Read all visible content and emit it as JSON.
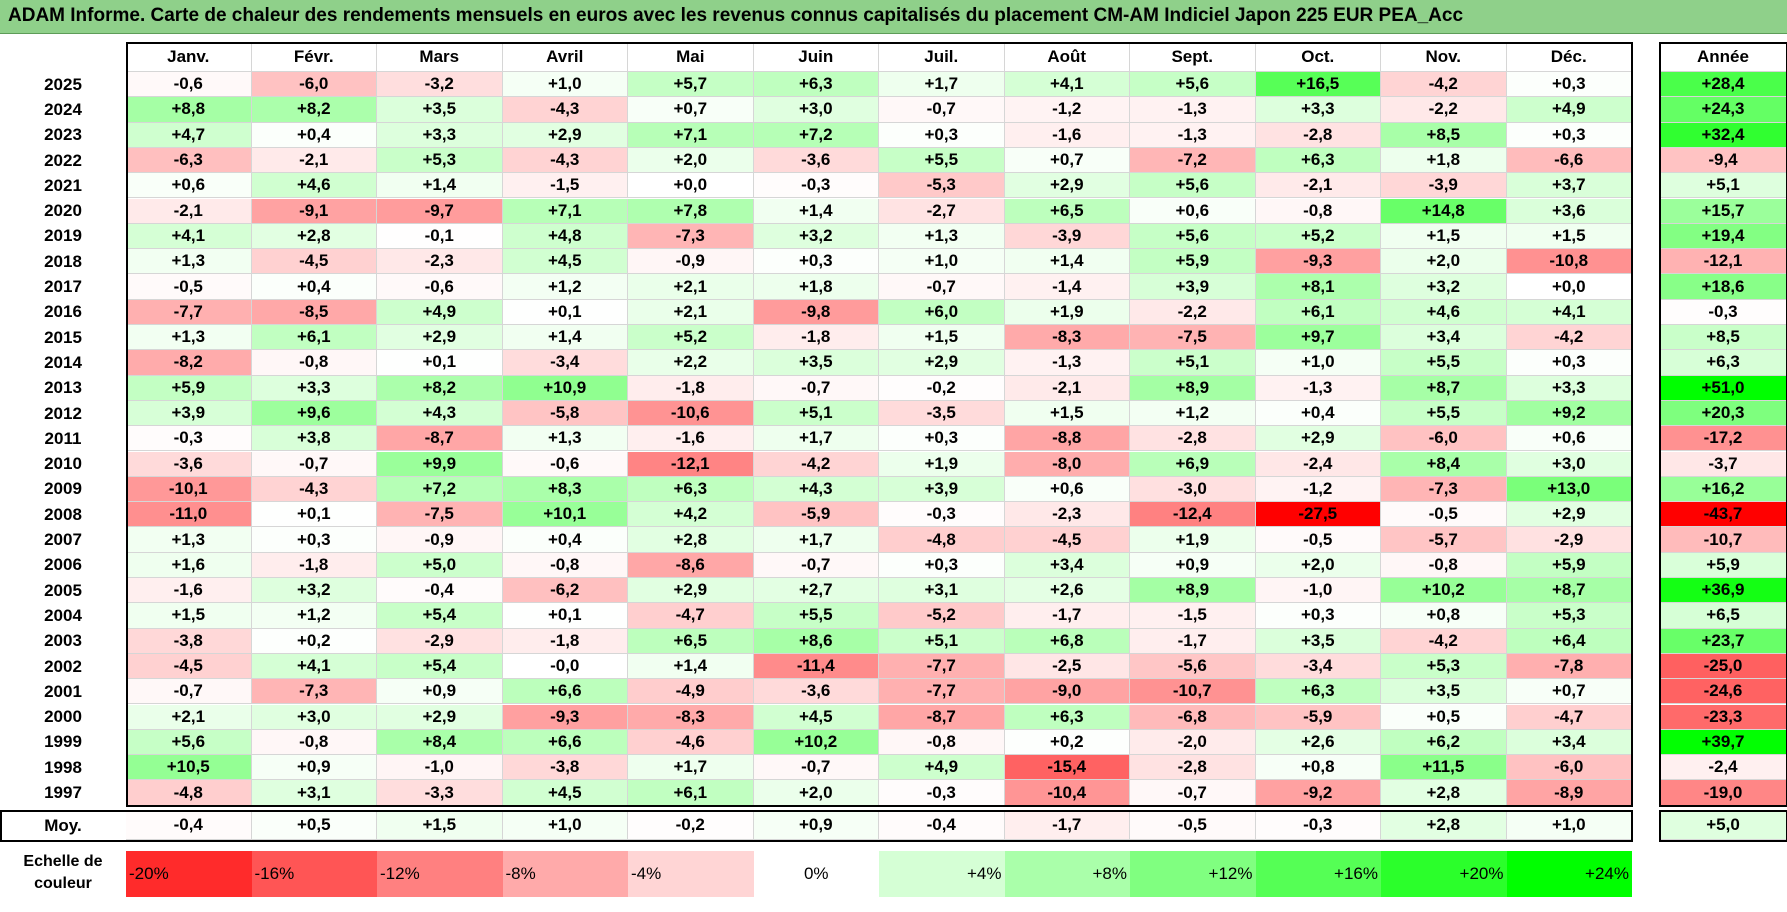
{
  "title": "ADAM Informe. Carte de chaleur des rendements mensuels en euros avec les revenus connus capitalisés du placement CM-AM Indiciel Japon 225 EUR PEA_Acc",
  "colors": {
    "neg_max": "#ff0000",
    "zero": "#ffffff",
    "pos_max": "#00ff00",
    "title_bg": "#8fd08a"
  },
  "scale_label": "Echelle de couleur",
  "chart_data": {
    "type": "heatmap",
    "title": "ADAM Informe. Carte de chaleur des rendements mensuels en euros avec les revenus connus capitalisés du placement CM-AM Indiciel Japon 225 EUR PEA_Acc",
    "months": [
      "Janv.",
      "Févr.",
      "Mars",
      "Avril",
      "Mai",
      "Juin",
      "Juil.",
      "Août",
      "Sept.",
      "Oct.",
      "Nov.",
      "Déc."
    ],
    "year_header": "Année",
    "rows": [
      {
        "year": "2025",
        "values": [
          "-0,6",
          "-6,0",
          "-3,2",
          "+1,0",
          "+5,7",
          "+6,3",
          "+1,7",
          "+4,1",
          "+5,6",
          "+16,5",
          "-4,2",
          "+0,3"
        ],
        "annual": "+28,4"
      },
      {
        "year": "2024",
        "values": [
          "+8,8",
          "+8,2",
          "+3,5",
          "-4,3",
          "+0,7",
          "+3,0",
          "-0,7",
          "-1,2",
          "-1,3",
          "+3,3",
          "-2,2",
          "+4,9"
        ],
        "annual": "+24,3"
      },
      {
        "year": "2023",
        "values": [
          "+4,7",
          "+0,4",
          "+3,3",
          "+2,9",
          "+7,1",
          "+7,2",
          "+0,3",
          "-1,6",
          "-1,3",
          "-2,8",
          "+8,5",
          "+0,3"
        ],
        "annual": "+32,4"
      },
      {
        "year": "2022",
        "values": [
          "-6,3",
          "-2,1",
          "+5,3",
          "-4,3",
          "+2,0",
          "-3,6",
          "+5,5",
          "+0,7",
          "-7,2",
          "+6,3",
          "+1,8",
          "-6,6"
        ],
        "annual": "-9,4"
      },
      {
        "year": "2021",
        "values": [
          "+0,6",
          "+4,6",
          "+1,4",
          "-1,5",
          "+0,0",
          "-0,3",
          "-5,3",
          "+2,9",
          "+5,6",
          "-2,1",
          "-3,9",
          "+3,7"
        ],
        "annual": "+5,1"
      },
      {
        "year": "2020",
        "values": [
          "-2,1",
          "-9,1",
          "-9,7",
          "+7,1",
          "+7,8",
          "+1,4",
          "-2,7",
          "+6,5",
          "+0,6",
          "-0,8",
          "+14,8",
          "+3,6"
        ],
        "annual": "+15,7"
      },
      {
        "year": "2019",
        "values": [
          "+4,1",
          "+2,8",
          "-0,1",
          "+4,8",
          "-7,3",
          "+3,2",
          "+1,3",
          "-3,9",
          "+5,6",
          "+5,2",
          "+1,5",
          "+1,5"
        ],
        "annual": "+19,4"
      },
      {
        "year": "2018",
        "values": [
          "+1,3",
          "-4,5",
          "-2,3",
          "+4,5",
          "-0,9",
          "+0,3",
          "+1,0",
          "+1,4",
          "+5,9",
          "-9,3",
          "+2,0",
          "-10,8"
        ],
        "annual": "-12,1"
      },
      {
        "year": "2017",
        "values": [
          "-0,5",
          "+0,4",
          "-0,6",
          "+1,2",
          "+2,1",
          "+1,8",
          "-0,7",
          "-1,4",
          "+3,9",
          "+8,1",
          "+3,2",
          "+0,0"
        ],
        "annual": "+18,6"
      },
      {
        "year": "2016",
        "values": [
          "-7,7",
          "-8,5",
          "+4,9",
          "+0,1",
          "+2,1",
          "-9,8",
          "+6,0",
          "+1,9",
          "-2,2",
          "+6,1",
          "+4,6",
          "+4,1"
        ],
        "annual": "-0,3"
      },
      {
        "year": "2015",
        "values": [
          "+1,3",
          "+6,1",
          "+2,9",
          "+1,4",
          "+5,2",
          "-1,8",
          "+1,5",
          "-8,3",
          "-7,5",
          "+9,7",
          "+3,4",
          "-4,2"
        ],
        "annual": "+8,5"
      },
      {
        "year": "2014",
        "values": [
          "-8,2",
          "-0,8",
          "+0,1",
          "-3,4",
          "+2,2",
          "+3,5",
          "+2,9",
          "-1,3",
          "+5,1",
          "+1,0",
          "+5,5",
          "+0,3"
        ],
        "annual": "+6,3"
      },
      {
        "year": "2013",
        "values": [
          "+5,9",
          "+3,3",
          "+8,2",
          "+10,9",
          "-1,8",
          "-0,7",
          "-0,2",
          "-2,1",
          "+8,9",
          "-1,3",
          "+8,7",
          "+3,3"
        ],
        "annual": "+51,0"
      },
      {
        "year": "2012",
        "values": [
          "+3,9",
          "+9,6",
          "+4,3",
          "-5,8",
          "-10,6",
          "+5,1",
          "-3,5",
          "+1,5",
          "+1,2",
          "+0,4",
          "+5,5",
          "+9,2"
        ],
        "annual": "+20,3"
      },
      {
        "year": "2011",
        "values": [
          "-0,3",
          "+3,8",
          "-8,7",
          "+1,3",
          "-1,6",
          "+1,7",
          "+0,3",
          "-8,8",
          "-2,8",
          "+2,9",
          "-6,0",
          "+0,6"
        ],
        "annual": "-17,2"
      },
      {
        "year": "2010",
        "values": [
          "-3,6",
          "-0,7",
          "+9,9",
          "-0,6",
          "-12,1",
          "-4,2",
          "+1,9",
          "-8,0",
          "+6,9",
          "-2,4",
          "+8,4",
          "+3,0"
        ],
        "annual": "-3,7"
      },
      {
        "year": "2009",
        "values": [
          "-10,1",
          "-4,3",
          "+7,2",
          "+8,3",
          "+6,3",
          "+4,3",
          "+3,9",
          "+0,6",
          "-3,0",
          "-1,2",
          "-7,3",
          "+13,0"
        ],
        "annual": "+16,2"
      },
      {
        "year": "2008",
        "values": [
          "-11,0",
          "+0,1",
          "-7,5",
          "+10,1",
          "+4,2",
          "-5,9",
          "-0,3",
          "-2,3",
          "-12,4",
          "-27,5",
          "-0,5",
          "+2,9"
        ],
        "annual": "-43,7"
      },
      {
        "year": "2007",
        "values": [
          "+1,3",
          "+0,3",
          "-0,9",
          "+0,4",
          "+2,8",
          "+1,7",
          "-4,8",
          "-4,5",
          "+1,9",
          "-0,5",
          "-5,7",
          "-2,9"
        ],
        "annual": "-10,7"
      },
      {
        "year": "2006",
        "values": [
          "+1,6",
          "-1,8",
          "+5,0",
          "-0,8",
          "-8,6",
          "-0,7",
          "+0,3",
          "+3,4",
          "+0,9",
          "+2,0",
          "-0,8",
          "+5,9"
        ],
        "annual": "+5,9"
      },
      {
        "year": "2005",
        "values": [
          "-1,6",
          "+3,2",
          "-0,4",
          "-6,2",
          "+2,9",
          "+2,7",
          "+3,1",
          "+2,6",
          "+8,9",
          "-1,0",
          "+10,2",
          "+8,7"
        ],
        "annual": "+36,9"
      },
      {
        "year": "2004",
        "values": [
          "+1,5",
          "+1,2",
          "+5,4",
          "+0,1",
          "-4,7",
          "+5,5",
          "-5,2",
          "-1,7",
          "-1,5",
          "+0,3",
          "+0,8",
          "+5,3"
        ],
        "annual": "+6,5"
      },
      {
        "year": "2003",
        "values": [
          "-3,8",
          "+0,2",
          "-2,9",
          "-1,8",
          "+6,5",
          "+8,6",
          "+5,1",
          "+6,8",
          "-1,7",
          "+3,5",
          "-4,2",
          "+6,4"
        ],
        "annual": "+23,7"
      },
      {
        "year": "2002",
        "values": [
          "-4,5",
          "+4,1",
          "+5,4",
          "-0,0",
          "+1,4",
          "-11,4",
          "-7,7",
          "-2,5",
          "-5,6",
          "-3,4",
          "+5,3",
          "-7,8"
        ],
        "annual": "-25,0"
      },
      {
        "year": "2001",
        "values": [
          "-0,7",
          "-7,3",
          "+0,9",
          "+6,6",
          "-4,9",
          "-3,6",
          "-7,7",
          "-9,0",
          "-10,7",
          "+6,3",
          "+3,5",
          "+0,7"
        ],
        "annual": "-24,6"
      },
      {
        "year": "2000",
        "values": [
          "+2,1",
          "+3,0",
          "+2,9",
          "-9,3",
          "-8,3",
          "+4,5",
          "-8,7",
          "+6,3",
          "-6,8",
          "-5,9",
          "+0,5",
          "-4,7"
        ],
        "annual": "-23,3"
      },
      {
        "year": "1999",
        "values": [
          "+5,6",
          "-0,8",
          "+8,4",
          "+6,6",
          "-4,6",
          "+10,2",
          "-0,8",
          "+0,2",
          "-2,0",
          "+2,6",
          "+6,2",
          "+3,4"
        ],
        "annual": "+39,7"
      },
      {
        "year": "1998",
        "values": [
          "+10,5",
          "+0,9",
          "-1,0",
          "-3,8",
          "+1,7",
          "-0,7",
          "+4,9",
          "-15,4",
          "-2,8",
          "+0,8",
          "+11,5",
          "-6,0"
        ],
        "annual": "-2,4"
      },
      {
        "year": "1997",
        "values": [
          "-4,8",
          "+3,1",
          "-3,3",
          "+4,5",
          "+6,1",
          "+2,0",
          "-0,3",
          "-10,4",
          "-0,7",
          "-9,2",
          "+2,8",
          "-8,9"
        ],
        "annual": "-19,0"
      }
    ],
    "average": {
      "label": "Moy.",
      "values": [
        "-0,4",
        "+0,5",
        "+1,5",
        "+1,0",
        "-0,2",
        "+0,9",
        "-0,4",
        "-1,7",
        "-0,5",
        "-0,3",
        "+2,8",
        "+1,0"
      ],
      "annual": "+5,0"
    },
    "scale": {
      "labels": [
        "-20%",
        "-16%",
        "-12%",
        "-8%",
        "-4%",
        "0%",
        "+4%",
        "+8%",
        "+12%",
        "+16%",
        "+20%",
        "+24%"
      ],
      "values": [
        -20,
        -16,
        -12,
        -8,
        -4,
        0,
        4,
        8,
        12,
        16,
        20,
        24
      ]
    },
    "color_range": {
      "monthly": [
        -25,
        25
      ],
      "annual": [
        -40,
        40
      ]
    }
  }
}
